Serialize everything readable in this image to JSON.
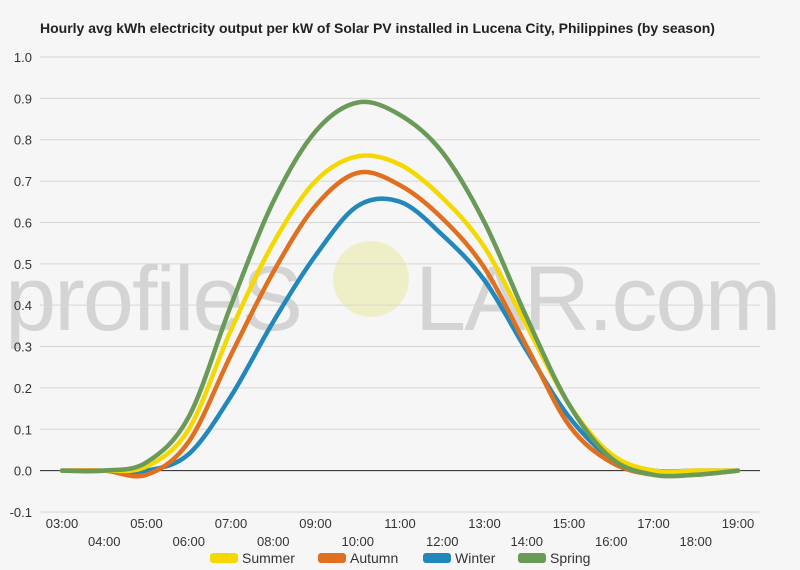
{
  "chart_data": {
    "type": "line",
    "title": "Hourly avg kWh electricity output per kW of Solar PV installed in Lucena City, Philippines (by season)",
    "xlabel": "",
    "ylabel": "",
    "x_ticks": [
      "03:00",
      "04:00",
      "05:00",
      "06:00",
      "07:00",
      "08:00",
      "09:00",
      "10:00",
      "11:00",
      "12:00",
      "13:00",
      "14:00",
      "15:00",
      "16:00",
      "17:00",
      "18:00",
      "19:00"
    ],
    "y_ticks": [
      "1.0",
      "0.9",
      "0.8",
      "0.7",
      "0.6",
      "0.5",
      "0.4",
      "0.3",
      "0.2",
      "0.1",
      "0.0",
      "-0.1"
    ],
    "ylim": [
      -0.1,
      1.0
    ],
    "xlim": [
      3,
      19
    ],
    "grid": true,
    "legend": "bottom",
    "watermark": "profileSOLAR.com",
    "x": [
      3,
      4,
      5,
      6,
      7,
      8,
      9,
      10,
      11,
      12,
      13,
      14,
      15,
      16,
      17,
      18,
      19
    ],
    "series": [
      {
        "name": "Summer",
        "color": "#f5d800",
        "values": [
          0,
          0,
          0.01,
          0.1,
          0.34,
          0.55,
          0.7,
          0.76,
          0.74,
          0.66,
          0.54,
          0.35,
          0.16,
          0.04,
          0,
          0,
          0
        ]
      },
      {
        "name": "Autumn",
        "color": "#e07020",
        "values": [
          0,
          0,
          -0.01,
          0.07,
          0.28,
          0.48,
          0.64,
          0.72,
          0.69,
          0.61,
          0.49,
          0.3,
          0.11,
          0.02,
          -0.01,
          -0.01,
          0
        ]
      },
      {
        "name": "Winter",
        "color": "#2288bb",
        "values": [
          0,
          0,
          0,
          0.04,
          0.18,
          0.36,
          0.52,
          0.64,
          0.65,
          0.57,
          0.46,
          0.29,
          0.13,
          0.03,
          0,
          0,
          0
        ]
      },
      {
        "name": "Spring",
        "color": "#6a9a58",
        "values": [
          0,
          0,
          0.02,
          0.13,
          0.4,
          0.65,
          0.82,
          0.89,
          0.86,
          0.77,
          0.6,
          0.37,
          0.16,
          0.03,
          -0.01,
          -0.01,
          0
        ]
      }
    ]
  }
}
